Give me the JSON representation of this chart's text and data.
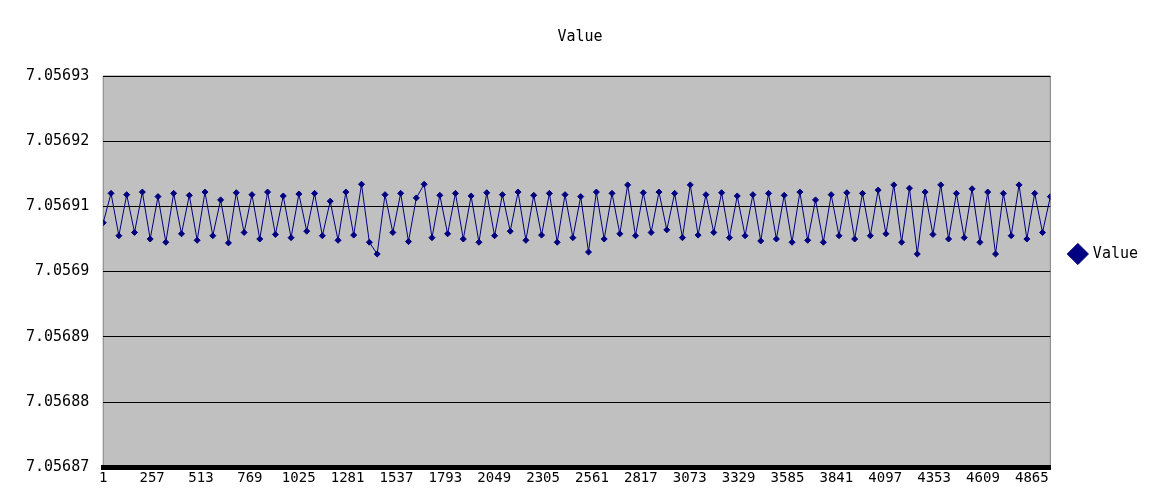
{
  "chart_data": {
    "type": "line",
    "title": "Value",
    "legend": "right",
    "marker": "diamond",
    "line_style": "solid",
    "grid": "y",
    "xlim": [
      1,
      4962
    ],
    "xticks": [
      1,
      257,
      513,
      769,
      1025,
      1281,
      1537,
      1793,
      2049,
      2305,
      2561,
      2817,
      3073,
      3329,
      3585,
      3841,
      4097,
      4353,
      4609,
      4865
    ],
    "ylim": [
      7.05687,
      7.05693
    ],
    "yticks": [
      7.05687,
      7.05688,
      7.05689,
      7.0569,
      7.05691,
      7.05692,
      7.05693
    ],
    "x": [
      1,
      42,
      83,
      124,
      165,
      206,
      247,
      288,
      329,
      370,
      411,
      452,
      493,
      534,
      575,
      616,
      657,
      698,
      739,
      780,
      821,
      862,
      903,
      944,
      985,
      1026,
      1067,
      1108,
      1149,
      1190,
      1231,
      1272,
      1313,
      1354,
      1395,
      1436,
      1477,
      1518,
      1559,
      1600,
      1641,
      1682,
      1723,
      1764,
      1805,
      1846,
      1887,
      1928,
      1969,
      2010,
      2051,
      2092,
      2133,
      2174,
      2215,
      2256,
      2297,
      2338,
      2379,
      2420,
      2461,
      2502,
      2543,
      2584,
      2625,
      2666,
      2707,
      2748,
      2789,
      2830,
      2871,
      2912,
      2953,
      2994,
      3035,
      3076,
      3117,
      3158,
      3199,
      3240,
      3281,
      3322,
      3363,
      3404,
      3445,
      3486,
      3527,
      3568,
      3609,
      3650,
      3691,
      3732,
      3773,
      3814,
      3855,
      3896,
      3937,
      3978,
      4019,
      4060,
      4101,
      4142,
      4183,
      4224,
      4265,
      4306,
      4347,
      4388,
      4429,
      4470,
      4511,
      4552,
      4593,
      4634,
      4675,
      4716,
      4757,
      4798,
      4839,
      4880,
      4921,
      4962
    ],
    "series": [
      {
        "name": "Value",
        "color": "#000080",
        "values": [
          7.0569075,
          7.056912,
          7.0569055,
          7.0569118,
          7.056906,
          7.0569122,
          7.056905,
          7.0569115,
          7.0569045,
          7.056912,
          7.0569058,
          7.0569117,
          7.0569048,
          7.0569122,
          7.0569055,
          7.056911,
          7.0569044,
          7.0569121,
          7.056906,
          7.0569118,
          7.056905,
          7.0569122,
          7.0569057,
          7.0569116,
          7.0569052,
          7.0569119,
          7.0569062,
          7.056912,
          7.0569055,
          7.0569108,
          7.0569048,
          7.0569122,
          7.0569056,
          7.0569134,
          7.0569045,
          7.0569027,
          7.0569118,
          7.056906,
          7.056912,
          7.0569046,
          7.0569113,
          7.0569134,
          7.0569052,
          7.0569117,
          7.0569058,
          7.056912,
          7.056905,
          7.0569116,
          7.0569045,
          7.0569121,
          7.0569055,
          7.0569118,
          7.0569062,
          7.0569122,
          7.0569048,
          7.0569117,
          7.0569056,
          7.056912,
          7.0569045,
          7.0569118,
          7.0569052,
          7.0569115,
          7.056903,
          7.0569122,
          7.056905,
          7.056912,
          7.0569058,
          7.0569133,
          7.0569055,
          7.0569121,
          7.056906,
          7.0569122,
          7.0569064,
          7.056912,
          7.0569052,
          7.0569133,
          7.0569056,
          7.0569118,
          7.056906,
          7.0569121,
          7.0569052,
          7.0569116,
          7.0569055,
          7.0569118,
          7.0569047,
          7.056912,
          7.056905,
          7.0569117,
          7.0569045,
          7.0569122,
          7.0569048,
          7.056911,
          7.0569045,
          7.0569118,
          7.0569055,
          7.0569121,
          7.056905,
          7.056912,
          7.0569055,
          7.0569125,
          7.0569058,
          7.0569133,
          7.0569045,
          7.0569128,
          7.0569027,
          7.0569122,
          7.0569057,
          7.0569133,
          7.056905,
          7.056912,
          7.0569052,
          7.0569127,
          7.0569045,
          7.0569122,
          7.0569027,
          7.056912,
          7.0569055,
          7.0569133,
          7.056905,
          7.056912,
          7.056906,
          7.0569115
        ]
      }
    ]
  }
}
